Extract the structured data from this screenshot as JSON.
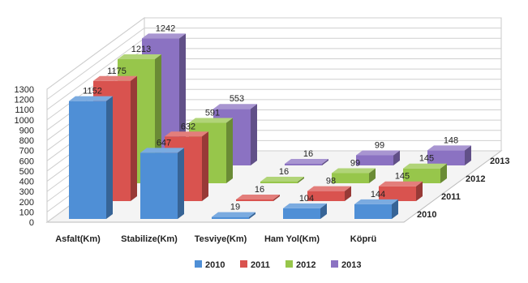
{
  "chart_data": {
    "type": "bar",
    "categories": [
      "Asfalt(Km)",
      "Stabilize(Km)",
      "Tesviye(Km)",
      "Ham Yol(Km)",
      "Köprü"
    ],
    "series": [
      {
        "name": "2010",
        "color": "#4f8fd6",
        "values": [
          1152,
          647,
          19,
          104,
          144
        ]
      },
      {
        "name": "2011",
        "color": "#d9534f",
        "values": [
          1175,
          632,
          16,
          98,
          145
        ]
      },
      {
        "name": "2012",
        "color": "#97c64b",
        "values": [
          1213,
          591,
          16,
          99,
          145
        ]
      },
      {
        "name": "2013",
        "color": "#8b72c2",
        "values": [
          1242,
          553,
          16,
          99,
          148
        ]
      }
    ],
    "yticks": [
      0,
      100,
      200,
      300,
      400,
      500,
      600,
      700,
      800,
      900,
      1000,
      1100,
      1200,
      1300
    ],
    "ylim": [
      0,
      1300
    ],
    "depth_labels": [
      "2010",
      "2011",
      "2012",
      "2013"
    ],
    "title": "",
    "xlabel": "",
    "ylabel": "",
    "grid": true,
    "legend_position": "bottom"
  }
}
